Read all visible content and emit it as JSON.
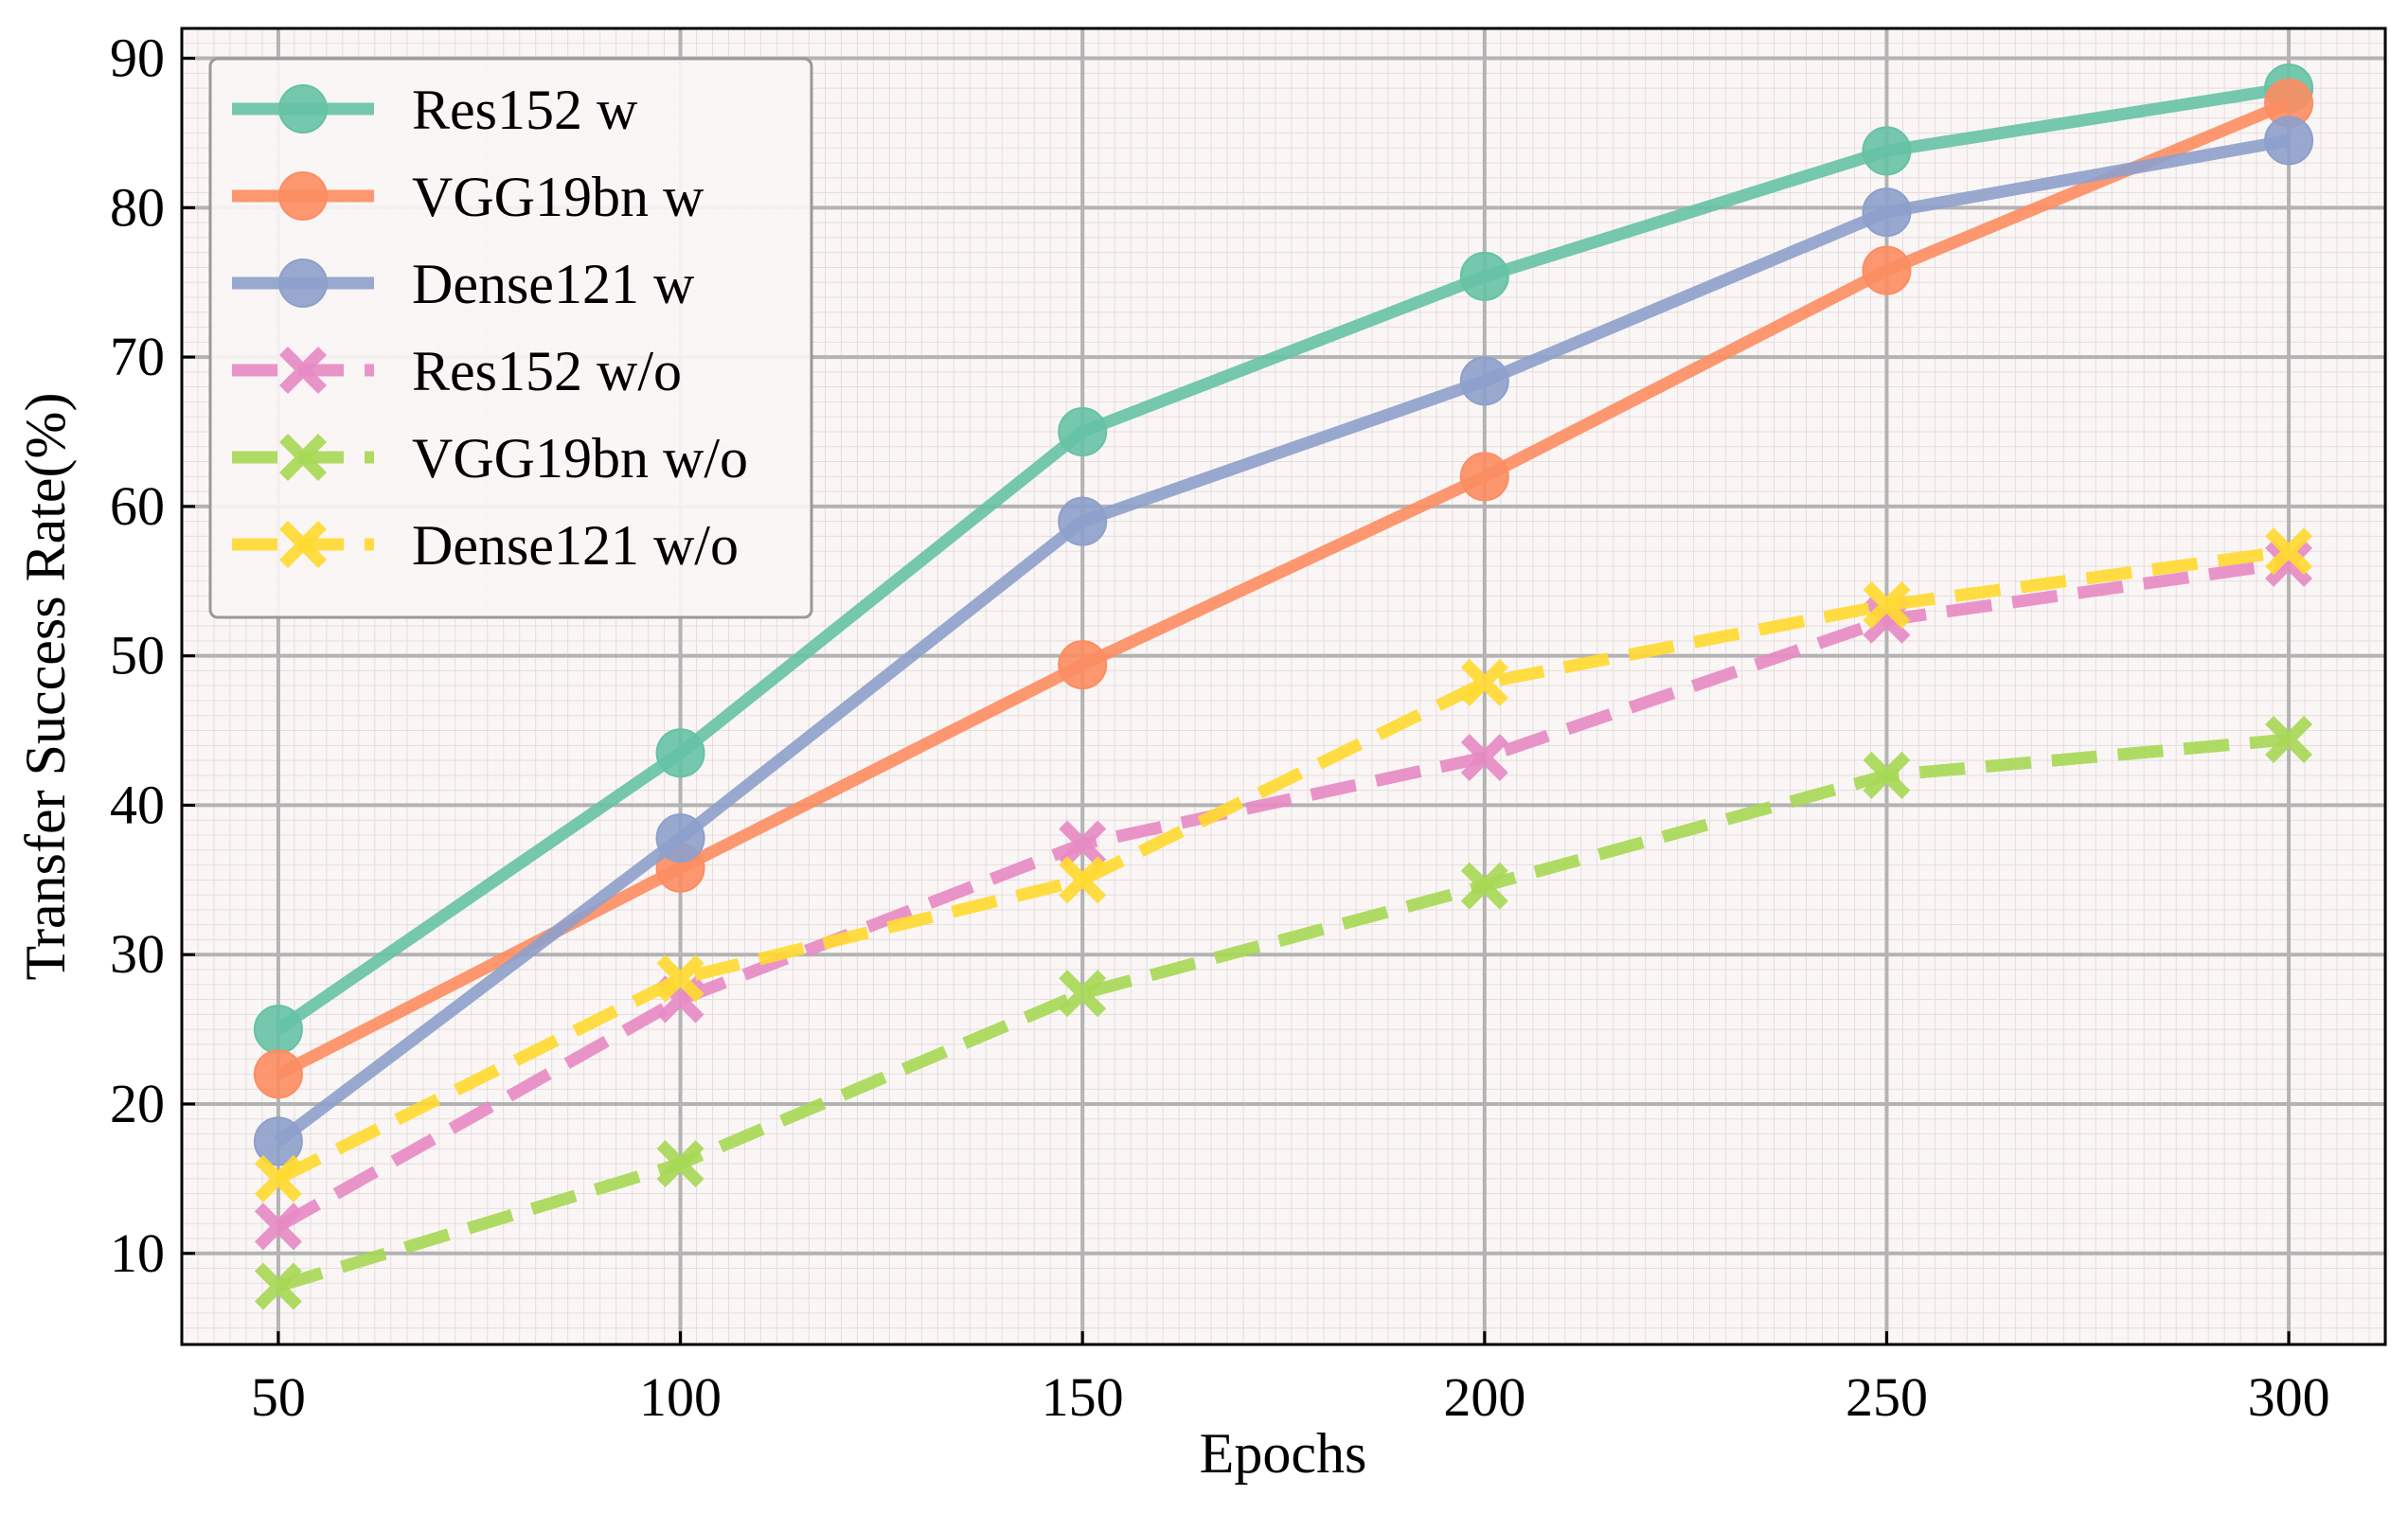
{
  "chart_data": {
    "type": "line",
    "title": "",
    "xlabel": "Epochs",
    "ylabel": "Transfer Success Rate(%)",
    "x": [
      50,
      100,
      150,
      200,
      250,
      300
    ],
    "xticks": [
      "50",
      "100",
      "150",
      "200",
      "250",
      "300"
    ],
    "yticks": [
      "10",
      "20",
      "30",
      "40",
      "50",
      "60",
      "70",
      "80",
      "90"
    ],
    "xlim": [
      38,
      312
    ],
    "ylim": [
      3.9,
      92
    ],
    "grid": true,
    "legend_position": "top-left",
    "series": [
      {
        "name": "Res152 w",
        "values": [
          25.0,
          43.5,
          65.0,
          75.4,
          83.8,
          88.0
        ],
        "color": "#66c2a5",
        "style": "solid",
        "marker": "circle"
      },
      {
        "name": "VGG19bn w",
        "values": [
          22.0,
          35.8,
          49.4,
          62.0,
          75.8,
          87.0
        ],
        "color": "#fc8d62",
        "style": "solid",
        "marker": "circle"
      },
      {
        "name": "Dense121 w",
        "values": [
          17.5,
          37.8,
          59.0,
          68.4,
          79.7,
          84.5
        ],
        "color": "#8da0cb",
        "style": "solid",
        "marker": "circle"
      },
      {
        "name": "Res152 w/o",
        "values": [
          11.8,
          27.0,
          37.4,
          43.2,
          52.4,
          56.2
        ],
        "color": "#e78ac3",
        "style": "dashed",
        "marker": "x"
      },
      {
        "name": "VGG19bn w/o",
        "values": [
          7.8,
          16.0,
          27.4,
          34.6,
          42.0,
          44.4
        ],
        "color": "#a6d854",
        "style": "dashed",
        "marker": "x"
      },
      {
        "name": "Dense121 w/o",
        "values": [
          15.0,
          28.4,
          35.0,
          48.2,
          53.4,
          57.0
        ],
        "color": "#ffd92f",
        "style": "dashed",
        "marker": "x"
      }
    ]
  }
}
